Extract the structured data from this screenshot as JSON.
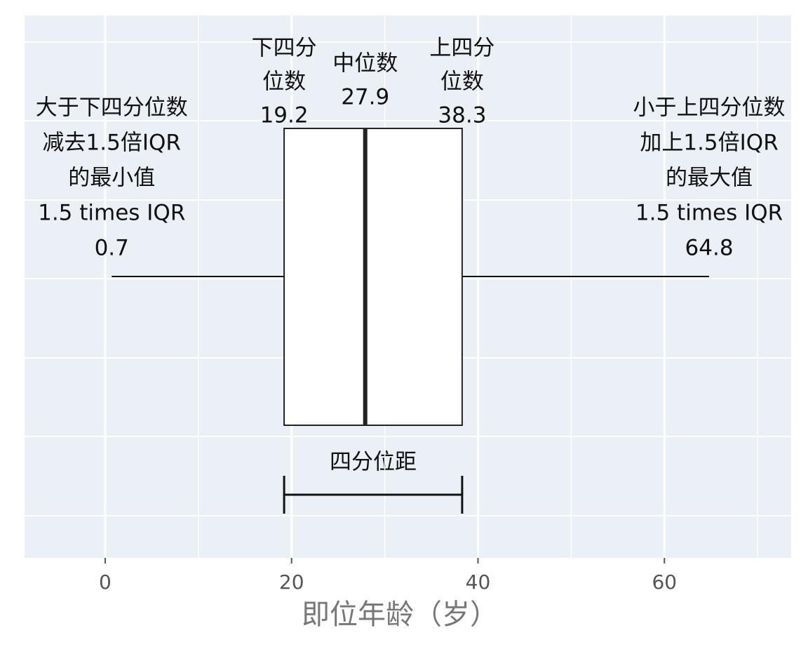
{
  "chart_data": {
    "type": "box",
    "x_label": "即位年龄（岁）",
    "xlim": [
      -8.65,
      73.6
    ],
    "xticks": [
      0,
      20,
      40,
      60
    ],
    "minor_xticks": [
      10,
      30,
      50,
      70
    ],
    "grid": true,
    "whisker_low": 0.7,
    "q1": 19.2,
    "median": 27.9,
    "q3": 38.3,
    "whisker_high": 64.8,
    "annotations": {
      "whisker_low": [
        "大于下四分位数",
        "减去1.5倍IQR",
        "的最小值",
        "1.5 times IQR"
      ],
      "q1": [
        "下四分",
        "位数"
      ],
      "median": [
        "中位数"
      ],
      "q3": [
        "上四分",
        "位数"
      ],
      "whisker_high": [
        "小于上四分位数",
        "加上1.5倍IQR",
        "的最大值",
        "1.5 times IQR"
      ],
      "iqr": "四分位距"
    },
    "box_color": "#ffffff",
    "background": "#eaf0f6"
  }
}
